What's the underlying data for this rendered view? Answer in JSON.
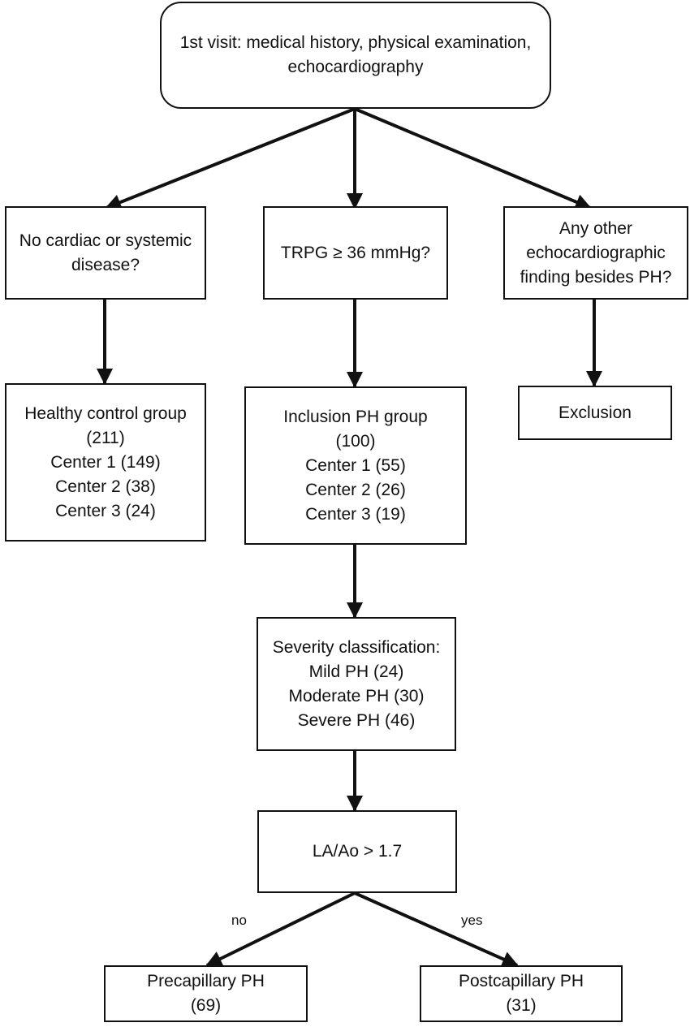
{
  "nodes": {
    "first_visit": {
      "lines": [
        "1st visit: medical history, physical examination,",
        "echocardiography"
      ]
    },
    "no_disease": {
      "lines": [
        "No cardiac or systemic",
        "disease?"
      ]
    },
    "trpg": {
      "lines": [
        "TRPG ≥ 36 mmHg?"
      ]
    },
    "other_finding": {
      "lines": [
        "Any other",
        "echocardiographic",
        "finding besides PH?"
      ]
    },
    "healthy_control": {
      "lines": [
        "Healthy control group",
        "(211)",
        "Center 1 (149)",
        "Center 2 (38)",
        "Center 3 (24)"
      ]
    },
    "inclusion_ph": {
      "lines": [
        "Inclusion PH group",
        "(100)",
        "Center 1 (55)",
        "Center 2 (26)",
        "Center 3 (19)"
      ]
    },
    "exclusion": {
      "lines": [
        "Exclusion"
      ]
    },
    "severity": {
      "lines": [
        "Severity classification:",
        "Mild PH (24)",
        "Moderate PH (30)",
        "Severe PH (46)"
      ]
    },
    "la_ao": {
      "lines": [
        "LA/Ao > 1.7"
      ]
    },
    "precapillary": {
      "lines": [
        "Precapillary PH",
        "(69)"
      ]
    },
    "postcapillary": {
      "lines": [
        "Postcapillary PH",
        "(31)"
      ]
    }
  },
  "edges": {
    "no_label": "no",
    "yes_label": "yes"
  },
  "colors": {
    "stroke": "#111111",
    "background": "#ffffff"
  }
}
